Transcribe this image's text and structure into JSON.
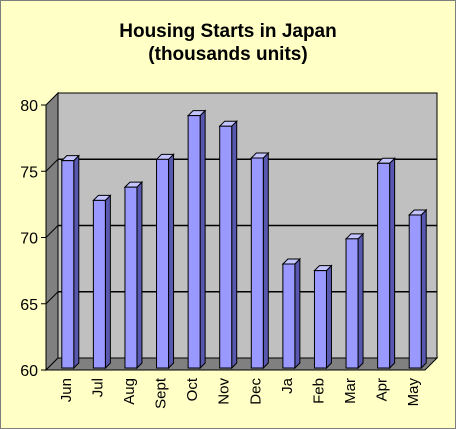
{
  "chart_data": {
    "type": "bar",
    "title_line1": "Housing Starts in Japan",
    "title_line2": "(thousands units)",
    "categories": [
      "Jun",
      "Jul",
      "Aug",
      "Sept",
      "Oct",
      "Nov",
      "Dec",
      "Ja",
      "Feb",
      "Mar",
      "Apr",
      "May"
    ],
    "values": [
      75.8,
      72.8,
      73.8,
      75.9,
      79.2,
      78.4,
      76.0,
      68.0,
      67.5,
      69.9,
      75.6,
      71.7
    ],
    "ylim": [
      60,
      80
    ],
    "yticks": [
      "60",
      "65",
      "70",
      "75",
      "80"
    ],
    "grid": true,
    "colors": {
      "background": "#FFFFC6",
      "plot_back": "#C0C0C0",
      "plot_floor": "#808080",
      "bar_front": "#9999FF",
      "bar_side": "#5858B0",
      "bar_top": "#C4C4FF"
    }
  }
}
